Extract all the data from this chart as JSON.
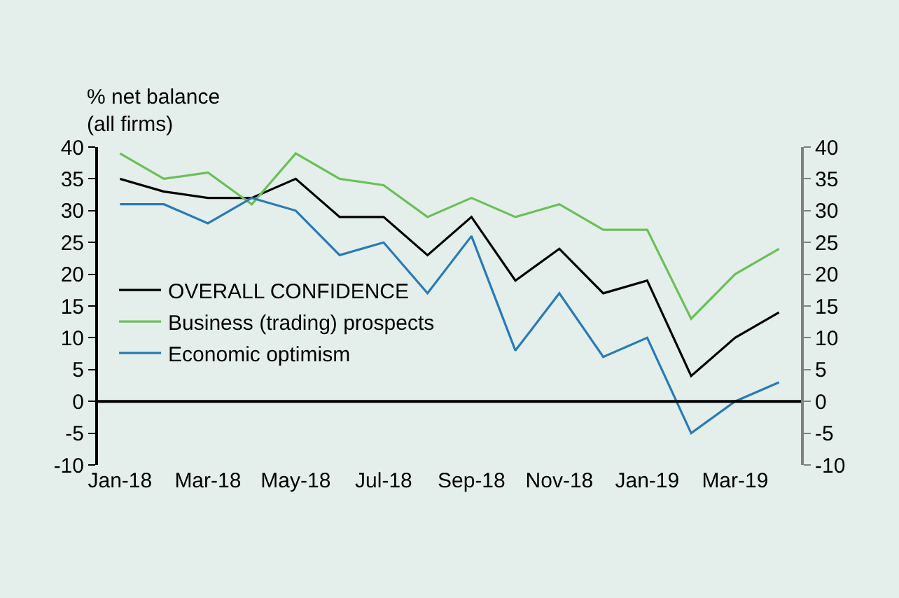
{
  "chart_data": {
    "type": "line",
    "ylabel": "% net balance\n(all firms)",
    "categories": [
      "Jan-18",
      null,
      "Mar-18",
      null,
      "May-18",
      null,
      "Jul-18",
      null,
      "Sep-18",
      null,
      "Nov-18",
      null,
      "Jan-19",
      null,
      "Mar-19",
      null
    ],
    "series": [
      {
        "name": "OVERALL CONFIDENCE",
        "color": "#000000",
        "values": [
          35,
          33,
          32,
          32,
          35,
          29,
          29,
          23,
          29,
          19,
          24,
          17,
          19,
          4,
          10,
          14
        ]
      },
      {
        "name": "Business (trading) prospects",
        "color": "#6cbf5a",
        "values": [
          39,
          35,
          36,
          31,
          39,
          35,
          34,
          29,
          32,
          29,
          31,
          27,
          27,
          13,
          20,
          24
        ]
      },
      {
        "name": "Economic optimism",
        "color": "#2a7ab8",
        "values": [
          31,
          31,
          28,
          32,
          30,
          23,
          25,
          17,
          26,
          8,
          17,
          7,
          10,
          -5,
          0,
          3
        ]
      }
    ],
    "ylim": [
      -10,
      40
    ],
    "yticks": [
      -10,
      -5,
      0,
      5,
      10,
      15,
      20,
      25,
      30,
      35,
      40
    ],
    "y2lim": [
      -10,
      40
    ],
    "y2ticks": [
      -10,
      -5,
      0,
      5,
      10,
      15,
      20,
      25,
      30,
      35,
      40
    ],
    "ref_lines": [
      {
        "axis": "y",
        "value": 0,
        "color": "#000000",
        "line_style": "solid"
      }
    ],
    "legend": "left",
    "grid": false,
    "marker": "none",
    "line_style": "solid"
  }
}
